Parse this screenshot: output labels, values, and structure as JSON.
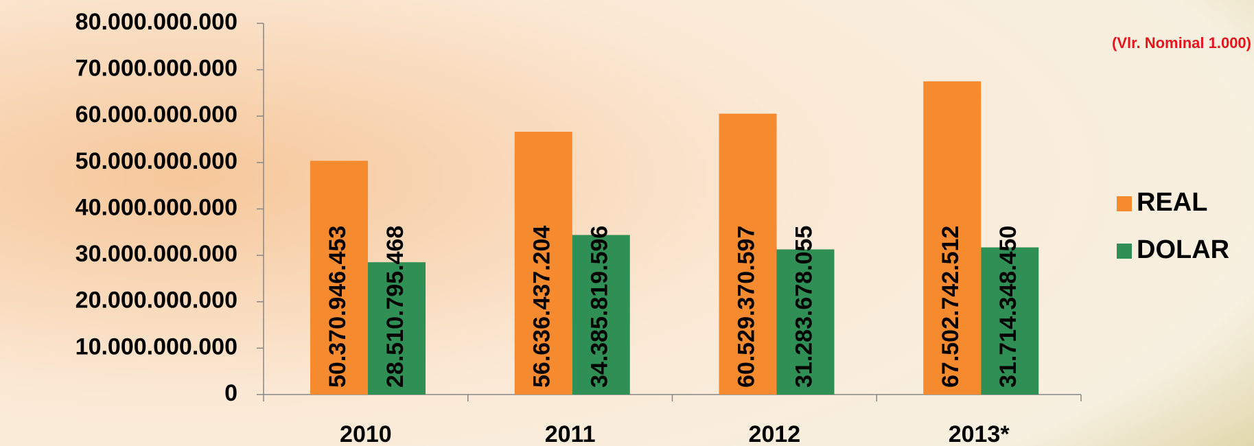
{
  "chart_data": {
    "type": "bar",
    "annotation": "(Vlr. Nominal 1.000)",
    "categories": [
      "2010",
      "2011",
      "2012",
      "2013*"
    ],
    "series": [
      {
        "name": "REAL",
        "color": "#f58a2e",
        "values": [
          50370946453,
          56636437204,
          60529370597,
          67502742512
        ],
        "value_labels": [
          "50.370.946.453",
          "56.636.437.204",
          "60.529.370.597",
          "67.502.742.512"
        ]
      },
      {
        "name": "DOLAR",
        "color": "#2f8f55",
        "values": [
          28510795468,
          34385819596,
          31283678055,
          31714348450
        ],
        "value_labels": [
          "28.510.795.468",
          "34.385.819.596",
          "31.283.678.055",
          "31.714.348.450"
        ]
      }
    ],
    "ylim": [
      0,
      80000000000
    ],
    "yticks": [
      0,
      {
        "value": 10000000000,
        "label": "10.000.000.000"
      },
      {
        "value": 20000000000,
        "label": "20.000.000.000"
      },
      {
        "value": 30000000000,
        "label": "30.000.000.000"
      },
      {
        "value": 40000000000,
        "label": "40.000.000.000"
      },
      {
        "value": 50000000000,
        "label": "50.000.000.000"
      },
      {
        "value": 60000000000,
        "label": "60.000.000.000"
      },
      {
        "value": 70000000000,
        "label": "70.000.000.000"
      },
      {
        "value": 80000000000,
        "label": "80.000.000.000"
      }
    ],
    "grid": false,
    "legend": "right"
  }
}
